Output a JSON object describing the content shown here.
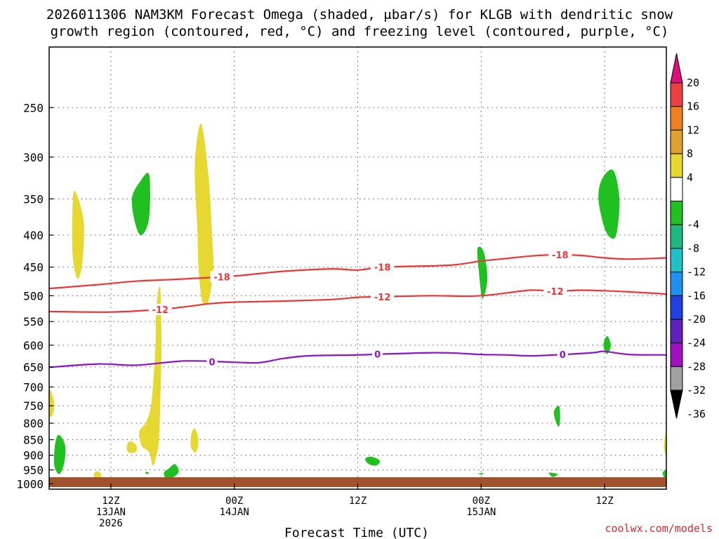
{
  "chart_data": {
    "type": "time-height contour plot",
    "title_line1": "2026011306 NAM3KM Forecast Omega (shaded, μbar/s) for KLGB with dendritic snow",
    "title_line2": "growth region (contoured, red, °C) and freezing level (contoured, purple, °C)",
    "xlabel": "Forecast Time (UTC)",
    "credit": "coolwx.com/models",
    "x_range_hours": [
      1,
      51
    ],
    "y_range_hPa": [
      200,
      1020
    ],
    "y_ticks": [
      250,
      300,
      350,
      400,
      450,
      500,
      550,
      600,
      650,
      700,
      750,
      800,
      850,
      900,
      950,
      1000
    ],
    "y_tick_labels": [
      "250",
      "300",
      "350",
      "400",
      "450",
      "500",
      "550",
      "600",
      "650",
      "700",
      "750",
      "800",
      "850",
      "900",
      "950",
      "1000"
    ],
    "x_ticks": [
      {
        "hour": 6,
        "line1": "12Z",
        "line2": "13JAN",
        "line3": "2026"
      },
      {
        "hour": 16,
        "line1": "00Z",
        "line2": "14JAN",
        "line3": ""
      },
      {
        "hour": 26,
        "line1": "12Z",
        "line2": "",
        "line3": ""
      },
      {
        "hour": 36,
        "line1": "00Z",
        "line2": "15JAN",
        "line3": ""
      },
      {
        "hour": 46,
        "line1": "12Z",
        "line2": "",
        "line3": ""
      }
    ],
    "colorbar": {
      "labels": [
        "20",
        "16",
        "12",
        "8",
        "4",
        "-4",
        "-8",
        "-12",
        "-16",
        "-20",
        "-24",
        "-28",
        "-32",
        "-36"
      ],
      "segments": [
        {
          "lo": 16,
          "hi": 20,
          "color": "#ee4040"
        },
        {
          "lo": 12,
          "hi": 16,
          "color": "#ee8020"
        },
        {
          "lo": 8,
          "hi": 12,
          "color": "#e0a030"
        },
        {
          "lo": 4,
          "hi": 8,
          "color": "#e6d830"
        },
        {
          "lo": -4,
          "hi": 4,
          "color": "#ffffff"
        },
        {
          "lo": -8,
          "hi": -4,
          "color": "#20c020"
        },
        {
          "lo": -12,
          "hi": -8,
          "color": "#20b880"
        },
        {
          "lo": -16,
          "hi": -12,
          "color": "#20c0c8"
        },
        {
          "lo": -20,
          "hi": -16,
          "color": "#2090f0"
        },
        {
          "lo": -24,
          "hi": -20,
          "color": "#2040e0"
        },
        {
          "lo": -28,
          "hi": -24,
          "color": "#6020c0"
        },
        {
          "lo": -32,
          "hi": -28,
          "color": "#a010c0"
        },
        {
          "lo": -36,
          "hi": -32,
          "color": "#a0a0a0"
        }
      ],
      "top_triangle_color": "#e0107a",
      "bottom_triangle_color": "#000000"
    },
    "omega_regions": [
      {
        "value": 6,
        "points": [
          [
            3.1,
            340
          ],
          [
            3.8,
            380
          ],
          [
            3.7,
            440
          ],
          [
            3.3,
            470
          ],
          [
            2.9,
            430
          ],
          [
            2.9,
            360
          ]
        ]
      },
      {
        "value": 6,
        "points": [
          [
            13.3,
            265
          ],
          [
            13.9,
            320
          ],
          [
            14.2,
            400
          ],
          [
            14.3,
            455
          ],
          [
            13.9,
            510
          ],
          [
            13.4,
            510
          ],
          [
            13.1,
            450
          ],
          [
            13.0,
            390
          ],
          [
            12.8,
            310
          ]
        ]
      },
      {
        "value": 6,
        "points": [
          [
            10.0,
            485
          ],
          [
            10.1,
            600
          ],
          [
            10.0,
            750
          ],
          [
            9.9,
            850
          ],
          [
            9.7,
            900
          ],
          [
            9.4,
            935
          ],
          [
            9.1,
            890
          ],
          [
            8.5,
            870
          ],
          [
            8.3,
            825
          ],
          [
            8.8,
            800
          ],
          [
            9.2,
            760
          ],
          [
            9.4,
            700
          ],
          [
            9.6,
            610
          ],
          [
            9.7,
            520
          ]
        ]
      },
      {
        "value": 6,
        "points": [
          [
            7.6,
            855
          ],
          [
            8.1,
            870
          ],
          [
            8.0,
            890
          ],
          [
            7.4,
            890
          ],
          [
            7.3,
            868
          ]
        ]
      },
      {
        "value": 6,
        "points": [
          [
            12.8,
            815
          ],
          [
            13.1,
            850
          ],
          [
            12.9,
            890
          ],
          [
            12.5,
            875
          ],
          [
            12.5,
            835
          ]
        ]
      },
      {
        "value": 6,
        "points": [
          [
            4.9,
            955
          ],
          [
            5.2,
            965
          ],
          [
            5.1,
            985
          ],
          [
            4.8,
            982
          ],
          [
            4.6,
            965
          ]
        ]
      },
      {
        "value": 6,
        "points": [
          [
            1.0,
            705
          ],
          [
            1.4,
            740
          ],
          [
            1.3,
            775
          ],
          [
            1.0,
            775
          ]
        ]
      },
      {
        "value": 6,
        "points": [
          [
            51.0,
            825
          ],
          [
            50.8,
            870
          ],
          [
            51.0,
            900
          ]
        ]
      },
      {
        "value": -6,
        "points": [
          [
            9.1,
            320
          ],
          [
            9.1,
            375
          ],
          [
            8.5,
            400
          ],
          [
            8.0,
            385
          ],
          [
            7.7,
            350
          ],
          [
            8.3,
            330
          ]
        ]
      },
      {
        "value": -6,
        "points": [
          [
            46.7,
            315
          ],
          [
            47.2,
            350
          ],
          [
            47.0,
            395
          ],
          [
            46.6,
            405
          ],
          [
            46.0,
            390
          ],
          [
            45.5,
            350
          ],
          [
            45.8,
            325
          ]
        ]
      },
      {
        "value": -6,
        "points": [
          [
            36.2,
            425
          ],
          [
            36.5,
            470
          ],
          [
            36.1,
            505
          ],
          [
            35.8,
            455
          ],
          [
            35.7,
            420
          ]
        ]
      },
      {
        "value": -6,
        "points": [
          [
            1.8,
            835
          ],
          [
            2.3,
            870
          ],
          [
            2.2,
            930
          ],
          [
            1.8,
            965
          ],
          [
            1.4,
            930
          ],
          [
            1.5,
            860
          ]
        ]
      },
      {
        "value": -6,
        "points": [
          [
            11.2,
            930
          ],
          [
            11.5,
            955
          ],
          [
            11.1,
            975
          ],
          [
            10.5,
            980
          ],
          [
            10.3,
            960
          ],
          [
            10.7,
            945
          ]
        ]
      },
      {
        "value": -6,
        "points": [
          [
            46.2,
            580
          ],
          [
            46.5,
            600
          ],
          [
            46.2,
            620
          ],
          [
            45.9,
            600
          ]
        ]
      },
      {
        "value": -6,
        "points": [
          [
            42.3,
            750
          ],
          [
            42.4,
            780
          ],
          [
            42.3,
            810
          ],
          [
            42.0,
            790
          ],
          [
            41.9,
            765
          ]
        ]
      },
      {
        "value": -6,
        "points": [
          [
            27.1,
            905
          ],
          [
            27.8,
            918
          ],
          [
            27.5,
            935
          ],
          [
            26.9,
            930
          ],
          [
            26.6,
            912
          ]
        ]
      },
      {
        "value": -6,
        "points": [
          [
            51.0,
            950
          ],
          [
            50.9,
            980
          ],
          [
            50.7,
            960
          ]
        ]
      },
      {
        "value": -6,
        "points": [
          [
            41.5,
            960
          ],
          [
            42.2,
            965
          ],
          [
            41.8,
            975
          ]
        ]
      },
      {
        "value": -6,
        "points": [
          [
            8.8,
            957
          ],
          [
            9.1,
            960
          ],
          [
            8.9,
            965
          ]
        ]
      },
      {
        "value": -6,
        "points": [
          [
            35.8,
            962
          ],
          [
            36.2,
            962
          ],
          [
            36.0,
            967
          ]
        ]
      }
    ],
    "contours": [
      {
        "name": "minus-18c-isotherm",
        "level": "-18",
        "color": "#ee3535",
        "points": [
          [
            1,
            487
          ],
          [
            5,
            480
          ],
          [
            8,
            474
          ],
          [
            10,
            472
          ],
          [
            12,
            470
          ],
          [
            16,
            465
          ],
          [
            20,
            457
          ],
          [
            24,
            453
          ],
          [
            26,
            455
          ],
          [
            28,
            450
          ],
          [
            32,
            448
          ],
          [
            34,
            446
          ],
          [
            36,
            440
          ],
          [
            38,
            436
          ],
          [
            40,
            432
          ],
          [
            42,
            430
          ],
          [
            44,
            431
          ],
          [
            46,
            435
          ],
          [
            48,
            437
          ],
          [
            51,
            435
          ]
        ],
        "label_hours": [
          15.0,
          28.0,
          42.4
        ]
      },
      {
        "name": "minus-12c-isotherm",
        "level": "-12",
        "color": "#ee3535",
        "points": [
          [
            1,
            530
          ],
          [
            6,
            531
          ],
          [
            10,
            526
          ],
          [
            12,
            521
          ],
          [
            14,
            515
          ],
          [
            16,
            512
          ],
          [
            20,
            510
          ],
          [
            24,
            507
          ],
          [
            26,
            503
          ],
          [
            28,
            502
          ],
          [
            32,
            500
          ],
          [
            35,
            501
          ],
          [
            37,
            498
          ],
          [
            40,
            490
          ],
          [
            42,
            492
          ],
          [
            44,
            490
          ],
          [
            46,
            491
          ],
          [
            48,
            493
          ],
          [
            51,
            497
          ]
        ],
        "label_hours": [
          10.0,
          28.0,
          42.0
        ]
      },
      {
        "name": "zero-c-freezing-level",
        "level": "0",
        "color": "#9010c8",
        "points": [
          [
            1,
            651
          ],
          [
            5,
            643
          ],
          [
            8,
            646
          ],
          [
            12,
            636
          ],
          [
            16,
            639
          ],
          [
            18,
            640
          ],
          [
            20,
            630
          ],
          [
            22,
            624
          ],
          [
            26,
            622
          ],
          [
            28,
            620
          ],
          [
            32,
            617
          ],
          [
            34,
            618
          ],
          [
            36,
            621
          ],
          [
            38,
            622
          ],
          [
            40,
            624
          ],
          [
            42,
            622
          ],
          [
            45,
            617
          ],
          [
            46,
            614
          ],
          [
            48,
            621
          ],
          [
            51,
            622
          ]
        ],
        "label_hours": [
          14.2,
          27.6,
          42.6
        ]
      }
    ]
  }
}
